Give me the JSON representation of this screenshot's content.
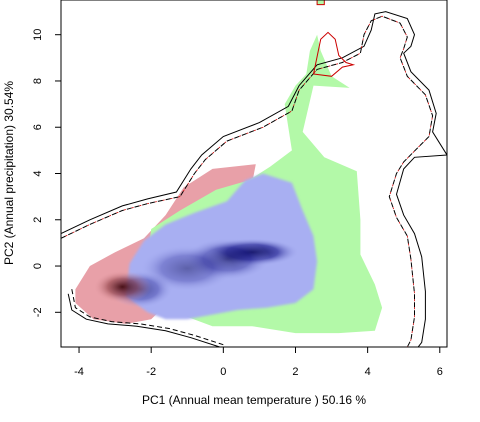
{
  "chart_data": {
    "type": "heatmap",
    "xlabel": "PC1 (Annual mean temperature ) 50.16 %",
    "ylabel": "PC2 (Annual precipitation) 30.54%",
    "xlim": [
      -4.5,
      6.2
    ],
    "ylim": [
      -3.5,
      11.5
    ],
    "x_ticks": [
      -4,
      -2,
      0,
      2,
      4,
      6
    ],
    "y_ticks": [
      -2,
      0,
      2,
      4,
      6,
      8,
      10
    ],
    "grid": false,
    "legend": "none",
    "colors": {
      "green_region": "#b3f9a8",
      "red_region": "#e8a0a8",
      "blue_density": "#a8aff2",
      "blue_core": "#000050",
      "red_core": "#3a0000",
      "outline_outer": "#000000",
      "outline_red": "#cc0000"
    },
    "regions": {
      "red": [
        [
          -4.1,
          -1.0
        ],
        [
          -3.7,
          0.0
        ],
        [
          -3.0,
          0.6
        ],
        [
          -2.2,
          1.2
        ],
        [
          -1.6,
          2.2
        ],
        [
          -1.1,
          3.4
        ],
        [
          -0.3,
          4.2
        ],
        [
          0.9,
          4.4
        ],
        [
          0.8,
          3.6
        ],
        [
          0.2,
          2.2
        ],
        [
          -0.6,
          0.6
        ],
        [
          -1.4,
          -1.4
        ],
        [
          -2.0,
          -2.3
        ],
        [
          -2.7,
          -2.5
        ],
        [
          -3.6,
          -2.3
        ],
        [
          -4.1,
          -1.6
        ]
      ],
      "green": [
        [
          -2.0,
          1.6
        ],
        [
          -1.2,
          2.4
        ],
        [
          -0.2,
          3.3
        ],
        [
          0.7,
          3.7
        ],
        [
          1.3,
          4.3
        ],
        [
          1.9,
          5.0
        ],
        [
          1.7,
          7.0
        ],
        [
          2.0,
          7.8
        ],
        [
          2.3,
          8.3
        ],
        [
          2.4,
          9.3
        ],
        [
          2.6,
          10.0
        ],
        [
          2.7,
          9.3
        ],
        [
          3.0,
          8.2
        ],
        [
          3.5,
          7.7
        ],
        [
          2.5,
          7.8
        ],
        [
          2.2,
          5.8
        ],
        [
          2.8,
          4.7
        ],
        [
          3.7,
          4.1
        ],
        [
          3.8,
          2.0
        ],
        [
          3.8,
          0.5
        ],
        [
          4.2,
          -0.8
        ],
        [
          4.4,
          -1.8
        ],
        [
          4.2,
          -2.8
        ],
        [
          3.2,
          -2.9
        ],
        [
          2.0,
          -2.9
        ],
        [
          0.8,
          -2.6
        ],
        [
          -0.3,
          -2.6
        ],
        [
          -1.0,
          -2.2
        ],
        [
          -1.6,
          -1.8
        ],
        [
          -1.9,
          -0.8
        ],
        [
          -2.1,
          0.4
        ]
      ],
      "blue": [
        [
          -2.7,
          -1.3
        ],
        [
          -2.6,
          0.1
        ],
        [
          -2.2,
          1.1
        ],
        [
          -1.6,
          1.8
        ],
        [
          -0.8,
          2.3
        ],
        [
          0.1,
          2.8
        ],
        [
          0.6,
          3.7
        ],
        [
          1.1,
          4.0
        ],
        [
          1.9,
          3.6
        ],
        [
          2.2,
          2.4
        ],
        [
          2.5,
          1.3
        ],
        [
          2.6,
          0.2
        ],
        [
          2.5,
          -1.0
        ],
        [
          2.0,
          -1.6
        ],
        [
          1.2,
          -1.8
        ],
        [
          0.4,
          -1.9
        ],
        [
          -0.3,
          -2.1
        ],
        [
          -1.0,
          -2.3
        ],
        [
          -1.6,
          -2.3
        ],
        [
          -2.1,
          -2.0
        ]
      ]
    },
    "density_cores": {
      "blue": [
        [
          0.8,
          0.6,
          1.3,
          0.6,
          0.95
        ],
        [
          0.1,
          0.3,
          1.2,
          0.9,
          0.6
        ],
        [
          -1.0,
          -0.1,
          1.3,
          1.0,
          0.45
        ],
        [
          -2.3,
          -1.0,
          0.9,
          0.8,
          0.55
        ]
      ],
      "red": [
        [
          -2.8,
          -0.9,
          0.8,
          0.7,
          0.85
        ]
      ]
    },
    "outlines": {
      "outer_solid": [
        [
          -4.5,
          1.4
        ],
        [
          -3.7,
          2.0
        ],
        [
          -2.8,
          2.6
        ],
        [
          -2.1,
          2.9
        ],
        [
          -1.3,
          3.2
        ],
        [
          -0.9,
          4.2
        ],
        [
          -0.6,
          4.8
        ],
        [
          0.0,
          5.6
        ],
        [
          1.0,
          6.2
        ],
        [
          1.8,
          6.9
        ],
        [
          2.1,
          7.8
        ],
        [
          2.6,
          8.7
        ],
        [
          3.3,
          9.0
        ],
        [
          3.9,
          9.5
        ],
        [
          4.1,
          10.2
        ],
        [
          4.2,
          10.9
        ],
        [
          4.5,
          11.0
        ],
        [
          5.1,
          10.7
        ],
        [
          5.3,
          10.0
        ],
        [
          5.2,
          9.5
        ],
        [
          5.0,
          9.2
        ],
        [
          5.2,
          8.4
        ],
        [
          5.7,
          7.6
        ],
        [
          5.9,
          6.6
        ],
        [
          5.8,
          5.8
        ],
        [
          6.2,
          4.8
        ],
        [
          5.3,
          4.7
        ],
        [
          5.0,
          4.2
        ],
        [
          4.8,
          3.1
        ],
        [
          5.0,
          2.2
        ],
        [
          5.3,
          1.4
        ],
        [
          5.5,
          0.4
        ],
        [
          5.6,
          -1.1
        ],
        [
          5.6,
          -2.3
        ],
        [
          5.5,
          -3.3
        ],
        [
          5.4,
          -3.5
        ]
      ],
      "outer_dashed": [
        [
          -4.5,
          1.2
        ],
        [
          -3.7,
          1.8
        ],
        [
          -2.8,
          2.4
        ],
        [
          -2.1,
          2.7
        ],
        [
          -1.2,
          3.0
        ],
        [
          -0.8,
          4.0
        ],
        [
          -0.5,
          4.6
        ],
        [
          0.1,
          5.4
        ],
        [
          1.1,
          6.0
        ],
        [
          1.9,
          6.7
        ],
        [
          2.1,
          7.6
        ],
        [
          2.6,
          8.5
        ],
        [
          3.3,
          8.8
        ],
        [
          3.8,
          9.2
        ],
        [
          3.9,
          10.0
        ],
        [
          4.1,
          10.6
        ],
        [
          4.4,
          10.8
        ],
        [
          4.9,
          10.5
        ],
        [
          5.1,
          9.9
        ],
        [
          5.0,
          9.4
        ],
        [
          4.9,
          9.0
        ],
        [
          5.1,
          8.2
        ],
        [
          5.6,
          7.4
        ],
        [
          5.8,
          6.5
        ],
        [
          5.7,
          5.6
        ],
        [
          5.0,
          4.5
        ],
        [
          4.8,
          4.0
        ],
        [
          4.6,
          3.0
        ],
        [
          4.8,
          2.1
        ],
        [
          5.1,
          1.3
        ],
        [
          5.2,
          0.3
        ],
        [
          5.3,
          -1.2
        ],
        [
          5.3,
          -2.2
        ],
        [
          5.2,
          -3.2
        ],
        [
          5.1,
          -3.5
        ]
      ],
      "lower_solid": [
        [
          -4.3,
          -1.2
        ],
        [
          -4.2,
          -1.9
        ],
        [
          -3.8,
          -2.3
        ],
        [
          -3.2,
          -2.5
        ],
        [
          -2.4,
          -2.6
        ],
        [
          -1.6,
          -2.8
        ],
        [
          -0.9,
          -3.1
        ],
        [
          -0.1,
          -3.5
        ]
      ],
      "lower_dashed": [
        [
          -4.2,
          -1.0
        ],
        [
          -4.1,
          -1.8
        ],
        [
          -3.7,
          -2.2
        ],
        [
          -3.1,
          -2.4
        ],
        [
          -2.3,
          -2.5
        ],
        [
          -1.5,
          -2.7
        ],
        [
          -0.8,
          -3.0
        ],
        [
          0.0,
          -3.4
        ]
      ],
      "top_green_rim": [
        [
          2.5,
          8.3
        ],
        [
          2.7,
          9.8
        ],
        [
          2.9,
          10.1
        ],
        [
          3.1,
          9.8
        ],
        [
          3.2,
          9.1
        ],
        [
          3.4,
          8.8
        ],
        [
          3.6,
          8.7
        ],
        [
          3.3,
          8.6
        ],
        [
          3.0,
          8.2
        ],
        [
          2.5,
          8.3
        ]
      ],
      "tiny_top": [
        [
          2.6,
          11.3
        ],
        [
          2.6,
          11.5
        ],
        [
          2.8,
          11.5
        ],
        [
          2.8,
          11.3
        ],
        [
          2.6,
          11.3
        ]
      ]
    }
  }
}
